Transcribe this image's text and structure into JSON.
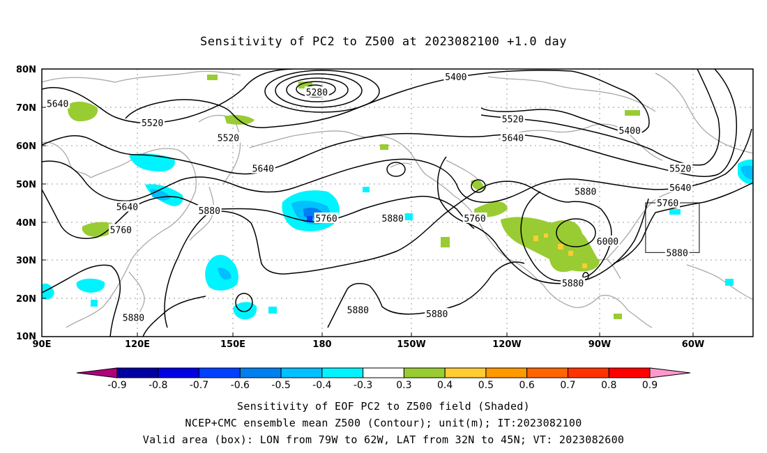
{
  "title": "Sensitivity of PC2 to Z500 at 2023082100 +1.0 day",
  "map": {
    "lat_ticks": [
      "80N",
      "70N",
      "60N",
      "50N",
      "40N",
      "30N",
      "20N",
      "10N"
    ],
    "lon_ticks": [
      "90E",
      "120E",
      "150E",
      "180",
      "150W",
      "120W",
      "90W",
      "60W"
    ],
    "contour_labels": [
      {
        "text": "5640",
        "lon": 95,
        "lat": 71
      },
      {
        "text": "5520",
        "lon": 125,
        "lat": 66
      },
      {
        "text": "5520",
        "lon": 149,
        "lat": 62
      },
      {
        "text": "5280",
        "lon": 177,
        "lat": 74
      },
      {
        "text": "5400",
        "lon": -139,
        "lat": 78
      },
      {
        "text": "5520",
        "lon": -121,
        "lat": 67
      },
      {
        "text": "5640",
        "lon": -121,
        "lat": 62
      },
      {
        "text": "5400",
        "lon": -84,
        "lat": 64
      },
      {
        "text": "5640",
        "lon": 160,
        "lat": 54
      },
      {
        "text": "5520",
        "lon": -68,
        "lat": 54
      },
      {
        "text": "5640",
        "lon": -68,
        "lat": 49
      },
      {
        "text": "5640",
        "lon": 117,
        "lat": 44
      },
      {
        "text": "5880",
        "lon": 143,
        "lat": 43
      },
      {
        "text": "5760",
        "lon": 180,
        "lat": 41
      },
      {
        "text": "5880",
        "lon": -159,
        "lat": 41
      },
      {
        "text": "5760",
        "lon": -133,
        "lat": 41
      },
      {
        "text": "5880",
        "lon": -98,
        "lat": 48
      },
      {
        "text": "5760",
        "lon": -72,
        "lat": 45
      },
      {
        "text": "5760",
        "lon": 115,
        "lat": 38
      },
      {
        "text": "6000",
        "lon": -91,
        "lat": 35
      },
      {
        "text": "5880",
        "lon": -69,
        "lat": 32
      },
      {
        "text": "5880",
        "lon": -102,
        "lat": 24
      },
      {
        "text": "5880",
        "lon": -170,
        "lat": 17
      },
      {
        "text": "5880",
        "lon": -145,
        "lat": 16
      },
      {
        "text": "5880",
        "lon": 119,
        "lat": 15
      }
    ],
    "valid_box": {
      "lon_west": -79,
      "lon_east": -62,
      "lat_south": 32,
      "lat_north": 45
    }
  },
  "colorbar": {
    "ticks": [
      "-0.9",
      "-0.8",
      "-0.7",
      "-0.6",
      "-0.5",
      "-0.4",
      "-0.3",
      "0.3",
      "0.4",
      "0.5",
      "0.6",
      "0.7",
      "0.8",
      "0.9"
    ],
    "colors": [
      "#b0007c",
      "#0000a0",
      "#0000e0",
      "#0040ff",
      "#007ff0",
      "#00c0ff",
      "#00f4ff",
      "#ffffff",
      "#99cc33",
      "#ffcc33",
      "#ff9900",
      "#ff6600",
      "#ff3300",
      "#ff0000",
      "#ff99cc"
    ]
  },
  "caption": {
    "line1": "Sensitivity of EOF PC2 to Z500 field (Shaded)",
    "line2": "NCEP+CMC ensemble mean Z500 (Contour); unit(m); IT:2023082100",
    "line3": "Valid area (box): LON from 79W to 62W, LAT from 32N to 45N; VT: 2023082600"
  }
}
